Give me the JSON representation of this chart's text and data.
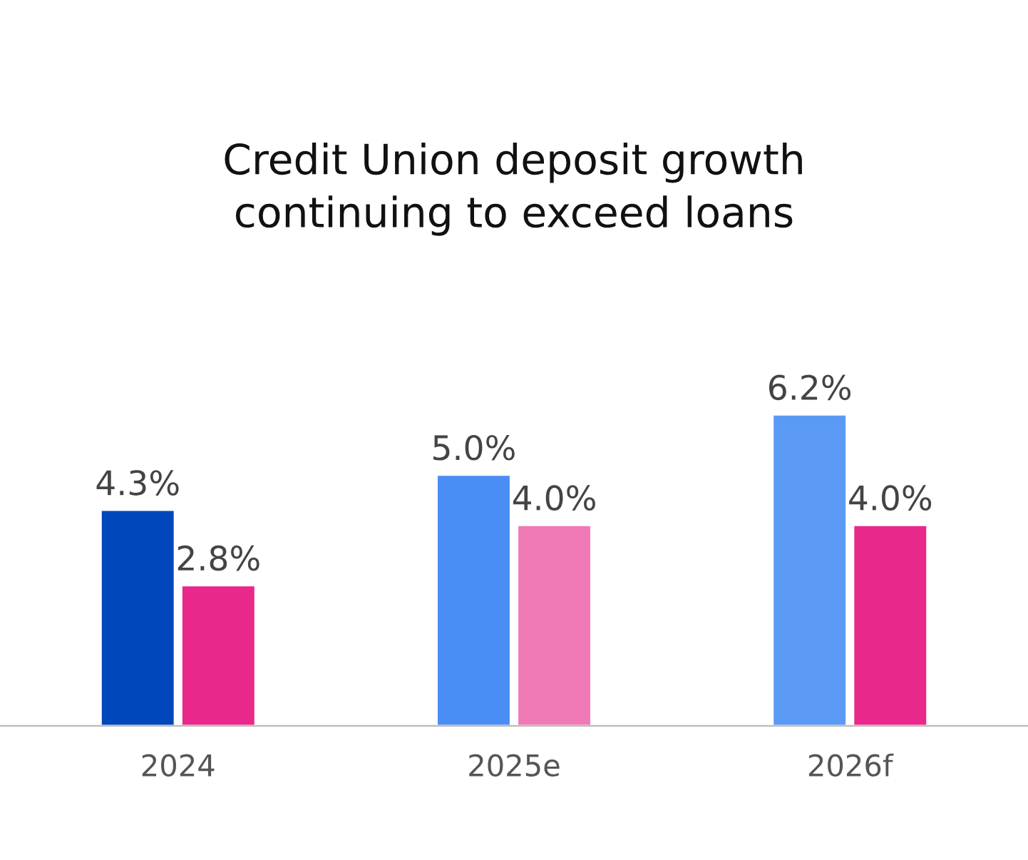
{
  "chart_data": {
    "type": "bar",
    "title": "Credit Union deposit growth\ncontinuing to exceed loans",
    "categories": [
      "2024",
      "2025e",
      "2026f"
    ],
    "series": [
      {
        "colors": [
          "#0047bb",
          "#4a8ef5",
          "#5a9af5"
        ],
        "values": [
          4.3,
          5.0,
          6.2
        ],
        "value_labels": [
          "4.3%",
          "5.0%",
          "6.2%"
        ]
      },
      {
        "colors": [
          "#e8288a",
          "#f07ab5",
          "#e8288a"
        ],
        "values": [
          2.8,
          4.0,
          4.0
        ],
        "value_labels": [
          "2.8%",
          "4.0%",
          "4.0%"
        ]
      }
    ],
    "grid": false,
    "legend": false
  }
}
